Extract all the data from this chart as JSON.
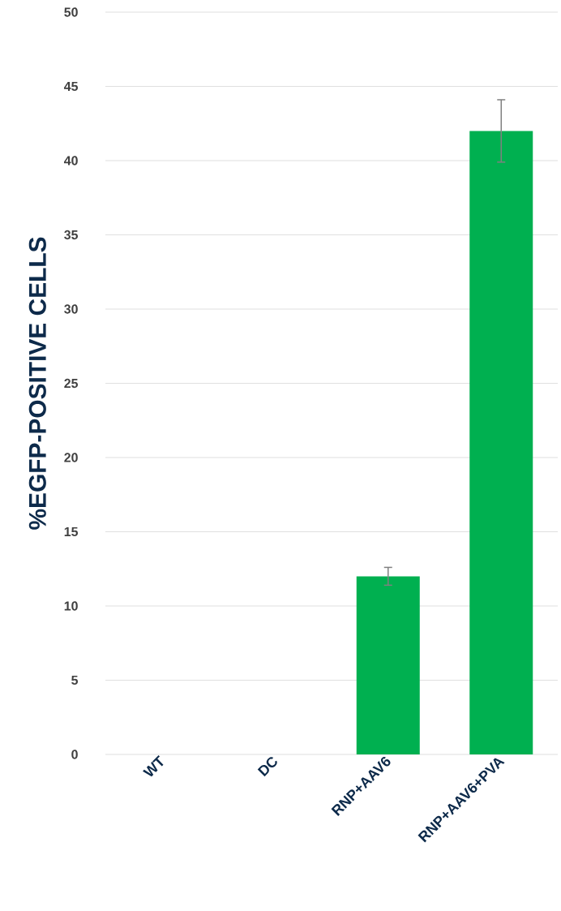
{
  "chart_data": {
    "type": "bar",
    "ylabel": "%EGFP-POSITIVE CELLS",
    "categories": [
      "WT",
      "DC",
      "RNP+AAV6",
      "RNP+AAV6+PVA"
    ],
    "values": [
      0,
      0,
      12,
      42
    ],
    "errors": [
      null,
      null,
      0.6,
      2.1
    ],
    "color": "#00b050",
    "ylim": [
      0,
      50
    ],
    "yticks": [
      0,
      5,
      10,
      15,
      20,
      25,
      30,
      35,
      40,
      45,
      50
    ],
    "grid": "y"
  }
}
